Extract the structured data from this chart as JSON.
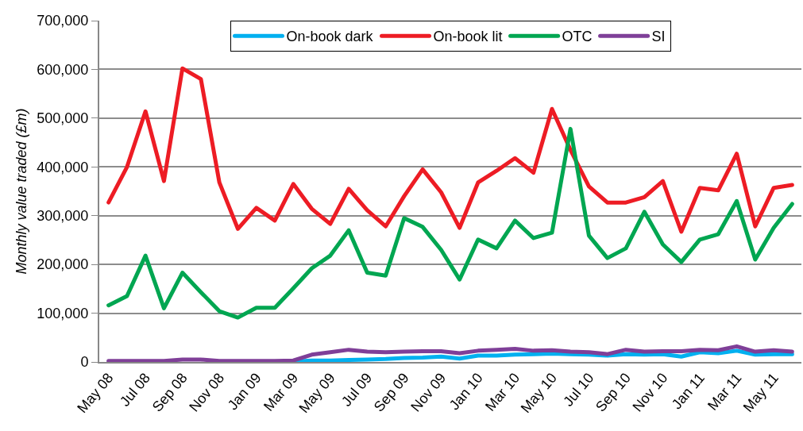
{
  "chart_data": {
    "type": "line",
    "ylabel": "Monthly value traded (£m)",
    "categories": [
      "May 08",
      null,
      "Jul 08",
      null,
      "Sep 08",
      null,
      "Nov 08",
      null,
      "Jan 09",
      null,
      "Mar 09",
      null,
      "May 09",
      null,
      "Jul 09",
      null,
      "Sep 09",
      null,
      "Nov 09",
      null,
      "Jan 10",
      null,
      "Mar 10",
      null,
      "May 10",
      null,
      "Jul 10",
      null,
      "Sep 10",
      null,
      "Nov 10",
      null,
      "Jan 11",
      null,
      "Mar 11",
      null,
      "May 11",
      null
    ],
    "series": [
      {
        "name": "On-book dark",
        "color": "#00b0f0",
        "values": [
          null,
          null,
          null,
          null,
          null,
          null,
          null,
          null,
          null,
          null,
          1000,
          3000,
          3000,
          4000,
          5000,
          6000,
          8000,
          9000,
          11000,
          7000,
          13000,
          13000,
          15000,
          16000,
          17000,
          16000,
          15000,
          13000,
          16000,
          15000,
          16000,
          11000,
          20000,
          18000,
          23000,
          15000,
          16000,
          16000
        ]
      },
      {
        "name": "On-book lit",
        "color": "#ed1c24",
        "values": [
          327000,
          400000,
          514000,
          371000,
          602000,
          580000,
          368000,
          273000,
          316000,
          290000,
          365000,
          314000,
          283000,
          355000,
          311000,
          278000,
          340000,
          395000,
          348000,
          275000,
          368000,
          392000,
          418000,
          388000,
          519000,
          435000,
          360000,
          327000,
          327000,
          338000,
          371000,
          267000,
          357000,
          352000,
          427000,
          278000,
          357000,
          363000
        ]
      },
      {
        "name": "OTC",
        "color": "#00a651",
        "values": [
          116000,
          135000,
          218000,
          110000,
          183000,
          143000,
          104000,
          91000,
          111000,
          111000,
          151000,
          192000,
          218000,
          270000,
          183000,
          177000,
          295000,
          277000,
          230000,
          169000,
          251000,
          233000,
          290000,
          254000,
          265000,
          478000,
          259000,
          213000,
          233000,
          308000,
          241000,
          205000,
          251000,
          262000,
          330000,
          210000,
          275000,
          324000
        ]
      },
      {
        "name": "SI",
        "color": "#7f3f98",
        "values": [
          2000,
          2000,
          2000,
          2000,
          5000,
          5000,
          2000,
          2000,
          2000,
          2000,
          3000,
          15000,
          20000,
          25000,
          21000,
          20000,
          21000,
          22000,
          22000,
          18000,
          23000,
          25000,
          27000,
          23000,
          24000,
          21000,
          20000,
          16000,
          25000,
          21000,
          22000,
          22000,
          25000,
          24000,
          32000,
          21000,
          24000,
          21000
        ]
      }
    ],
    "ylim": [
      0,
      700000
    ],
    "yticks": [
      {
        "value": 0,
        "label": "0"
      },
      {
        "value": 100000,
        "label": "100,000"
      },
      {
        "value": 200000,
        "label": "200,000"
      },
      {
        "value": 300000,
        "label": "300,000"
      },
      {
        "value": 400000,
        "label": "400,000"
      },
      {
        "value": 500000,
        "label": "500,000"
      },
      {
        "value": 600000,
        "label": "600,000"
      },
      {
        "value": 700000,
        "label": "700,000"
      }
    ],
    "grid": "y",
    "legend": "top",
    "marker": "none",
    "line_style": "solid"
  }
}
